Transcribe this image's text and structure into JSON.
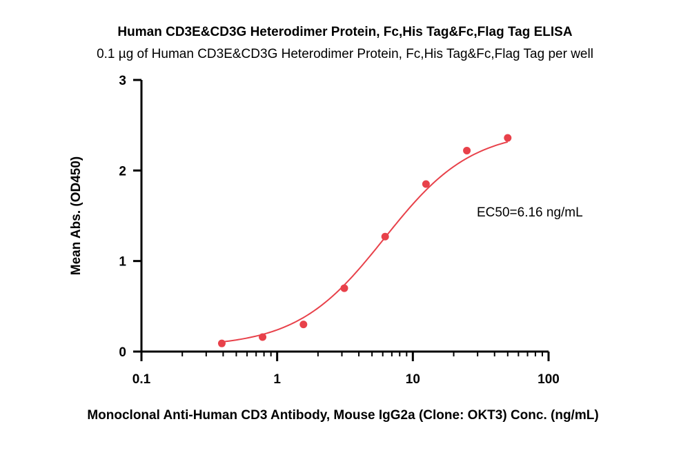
{
  "chart_data": {
    "type": "scatter",
    "title": "Human CD3E&CD3G Heterodimer Protein, Fc,His Tag&Fc,Flag Tag ELISA",
    "subtitle": "0.1 µg of Human CD3E&CD3G Heterodimer Protein, Fc,His Tag&Fc,Flag Tag per well",
    "xlabel": "Monoclonal Anti-Human CD3 Antibody, Mouse IgG2a (Clone: OKT3) Conc. (ng/mL)",
    "ylabel": "Mean Abs. (OD450)",
    "x_scale": "log",
    "xlim": [
      0.1,
      100
    ],
    "ylim": [
      0,
      3
    ],
    "x_ticks": [
      0.1,
      1,
      10,
      100
    ],
    "x_tick_labels": [
      "0.1",
      "1",
      "10",
      "100"
    ],
    "y_ticks": [
      0,
      1,
      2,
      3
    ],
    "y_tick_labels": [
      "0",
      "1",
      "2",
      "3"
    ],
    "grid": false,
    "legend": "none",
    "series": [
      {
        "color": "#e8414a",
        "x": [
          0.391,
          0.781,
          1.563,
          3.125,
          6.25,
          12.5,
          25,
          50
        ],
        "y": [
          0.09,
          0.16,
          0.3,
          0.7,
          1.27,
          1.85,
          2.22,
          2.36
        ],
        "fit": "4PL sigmoidal curve"
      }
    ],
    "annotations": [
      {
        "text": "EC50=6.16 ng/mL",
        "position": "right"
      }
    ]
  }
}
